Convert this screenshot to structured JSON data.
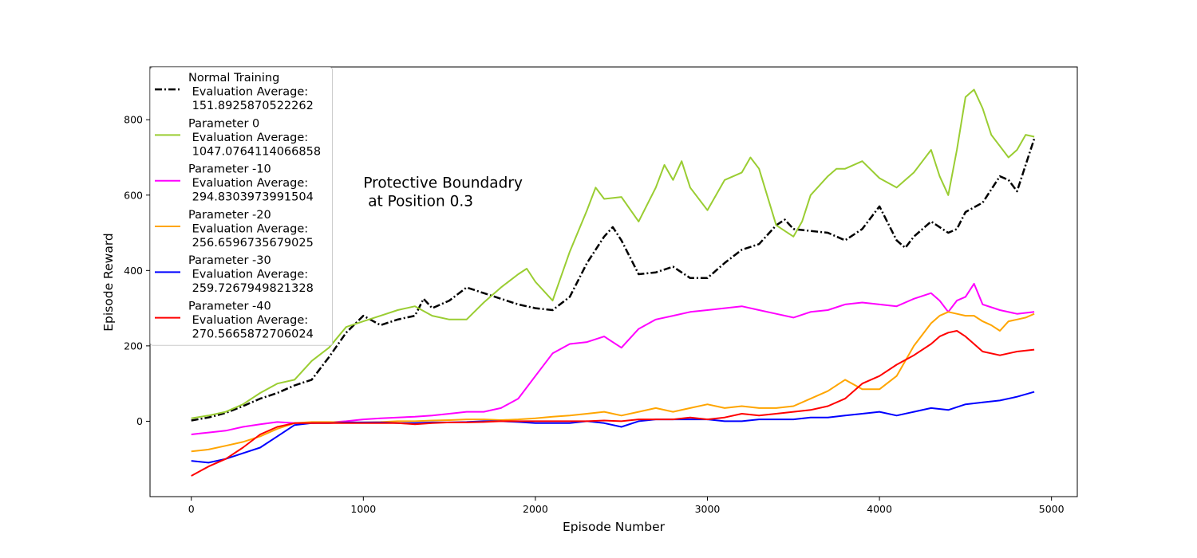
{
  "chart_data": {
    "type": "line",
    "title": "",
    "xlabel": "Episode Number",
    "ylabel": "Episode Reward",
    "xlim": [
      -240,
      5150
    ],
    "ylim": [
      -200,
      940
    ],
    "xticks": [
      0,
      1000,
      2000,
      3000,
      4000,
      5000
    ],
    "yticks": [
      0,
      200,
      400,
      600,
      800
    ],
    "grid": false,
    "legend_position": "upper-left",
    "annotation": {
      "lines": [
        "Protective Boundadry",
        " at Position 0.3"
      ],
      "x": 1000,
      "y": 620
    },
    "series": [
      {
        "name_lines": [
          "Normal Training",
          " Evaluation Average:",
          " 151.8925870522262"
        ],
        "color": "#000000",
        "style": "dashdot",
        "x": [
          0,
          100,
          200,
          300,
          400,
          500,
          600,
          700,
          800,
          900,
          1000,
          1100,
          1200,
          1300,
          1350,
          1400,
          1500,
          1600,
          1700,
          1800,
          1900,
          2000,
          2100,
          2200,
          2300,
          2400,
          2450,
          2500,
          2600,
          2700,
          2800,
          2900,
          3000,
          3100,
          3200,
          3300,
          3400,
          3450,
          3500,
          3600,
          3700,
          3800,
          3900,
          4000,
          4100,
          4150,
          4200,
          4300,
          4400,
          4450,
          4500,
          4600,
          4700,
          4750,
          4800,
          4850,
          4900
        ],
        "y": [
          2,
          10,
          22,
          40,
          60,
          75,
          95,
          110,
          170,
          235,
          280,
          255,
          270,
          280,
          325,
          300,
          320,
          355,
          340,
          325,
          310,
          300,
          295,
          330,
          420,
          490,
          515,
          480,
          390,
          395,
          410,
          380,
          380,
          420,
          455,
          470,
          520,
          535,
          510,
          505,
          500,
          480,
          510,
          570,
          480,
          460,
          490,
          530,
          500,
          510,
          555,
          580,
          650,
          640,
          610,
          680,
          750
        ]
      },
      {
        "name_lines": [
          "Parameter 0",
          " Evaluation Average:",
          " 1047.0764114066858"
        ],
        "color": "#9ACD32",
        "style": "solid",
        "x": [
          0,
          100,
          200,
          300,
          400,
          500,
          600,
          700,
          800,
          900,
          1000,
          1100,
          1200,
          1300,
          1400,
          1500,
          1600,
          1700,
          1800,
          1900,
          1950,
          2000,
          2100,
          2200,
          2300,
          2350,
          2400,
          2500,
          2600,
          2700,
          2750,
          2800,
          2850,
          2900,
          3000,
          3100,
          3200,
          3250,
          3300,
          3400,
          3500,
          3550,
          3600,
          3700,
          3750,
          3800,
          3900,
          4000,
          4100,
          4200,
          4250,
          4300,
          4350,
          4400,
          4450,
          4500,
          4550,
          4600,
          4650,
          4700,
          4750,
          4800,
          4850,
          4900
        ],
        "y": [
          8,
          15,
          25,
          45,
          75,
          100,
          110,
          160,
          195,
          250,
          265,
          280,
          295,
          305,
          280,
          270,
          270,
          315,
          355,
          390,
          405,
          370,
          320,
          450,
          560,
          620,
          590,
          595,
          530,
          620,
          680,
          640,
          690,
          620,
          560,
          640,
          660,
          700,
          670,
          520,
          490,
          530,
          600,
          650,
          670,
          670,
          690,
          645,
          620,
          660,
          690,
          720,
          650,
          600,
          720,
          860,
          880,
          830,
          760,
          730,
          700,
          720,
          760,
          755
        ]
      },
      {
        "name_lines": [
          "Parameter -10",
          " Evaluation Average:",
          " 294.8303973991504"
        ],
        "color": "#FF00FF",
        "style": "solid",
        "x": [
          0,
          100,
          200,
          300,
          400,
          500,
          600,
          700,
          800,
          900,
          1000,
          1100,
          1200,
          1300,
          1400,
          1500,
          1600,
          1700,
          1800,
          1900,
          2000,
          2100,
          2200,
          2300,
          2400,
          2500,
          2600,
          2700,
          2800,
          2900,
          3000,
          3100,
          3200,
          3300,
          3400,
          3500,
          3600,
          3700,
          3800,
          3900,
          4000,
          4100,
          4200,
          4300,
          4350,
          4400,
          4450,
          4500,
          4550,
          4600,
          4700,
          4800,
          4900
        ],
        "y": [
          -35,
          -30,
          -25,
          -15,
          -8,
          -2,
          -5,
          -5,
          -3,
          0,
          5,
          8,
          10,
          12,
          15,
          20,
          25,
          25,
          35,
          60,
          120,
          180,
          205,
          210,
          225,
          195,
          245,
          270,
          280,
          290,
          295,
          300,
          305,
          295,
          285,
          275,
          290,
          295,
          310,
          315,
          310,
          305,
          325,
          340,
          320,
          290,
          320,
          330,
          365,
          310,
          295,
          285,
          290
        ]
      },
      {
        "name_lines": [
          "Parameter -20",
          " Evaluation Average:",
          " 256.6596735679025"
        ],
        "color": "#FFA500",
        "style": "solid",
        "x": [
          0,
          100,
          200,
          300,
          400,
          500,
          600,
          700,
          800,
          900,
          1000,
          1100,
          1200,
          1300,
          1400,
          1500,
          1600,
          1700,
          1800,
          1900,
          2000,
          2100,
          2200,
          2300,
          2400,
          2500,
          2600,
          2700,
          2800,
          2900,
          3000,
          3100,
          3200,
          3300,
          3400,
          3500,
          3600,
          3700,
          3800,
          3900,
          4000,
          4100,
          4200,
          4300,
          4350,
          4400,
          4450,
          4500,
          4550,
          4600,
          4650,
          4700,
          4750,
          4800,
          4850,
          4900
        ],
        "y": [
          -80,
          -75,
          -65,
          -55,
          -40,
          -20,
          -5,
          -2,
          -2,
          -3,
          -3,
          -2,
          0,
          0,
          2,
          3,
          5,
          5,
          3,
          5,
          8,
          12,
          15,
          20,
          25,
          15,
          25,
          35,
          25,
          35,
          45,
          35,
          40,
          35,
          35,
          40,
          60,
          80,
          110,
          85,
          85,
          120,
          200,
          260,
          280,
          290,
          285,
          280,
          280,
          265,
          255,
          240,
          265,
          270,
          275,
          285
        ]
      },
      {
        "name_lines": [
          "Parameter -30",
          " Evaluation Average:",
          " 259.7267949821328"
        ],
        "color": "#0000FF",
        "style": "solid",
        "x": [
          0,
          100,
          200,
          300,
          400,
          500,
          600,
          700,
          800,
          900,
          1000,
          1100,
          1200,
          1300,
          1400,
          1500,
          1600,
          1700,
          1800,
          1900,
          2000,
          2100,
          2200,
          2300,
          2400,
          2500,
          2600,
          2700,
          2800,
          2900,
          3000,
          3100,
          3200,
          3300,
          3400,
          3500,
          3600,
          3700,
          3800,
          3900,
          4000,
          4100,
          4200,
          4300,
          4400,
          4500,
          4600,
          4700,
          4800,
          4900
        ],
        "y": [
          -105,
          -110,
          -100,
          -85,
          -70,
          -40,
          -10,
          -5,
          -5,
          -3,
          -3,
          -3,
          -5,
          -5,
          -3,
          -3,
          -2,
          0,
          0,
          -2,
          -5,
          -5,
          -5,
          0,
          -5,
          -15,
          0,
          5,
          5,
          5,
          5,
          0,
          0,
          5,
          5,
          5,
          10,
          10,
          15,
          20,
          25,
          15,
          25,
          35,
          30,
          45,
          50,
          55,
          65,
          78
        ]
      },
      {
        "name_lines": [
          "Parameter -40",
          " Evaluation Average:",
          " 270.5665872706024"
        ],
        "color": "#FF0000",
        "style": "solid",
        "x": [
          0,
          100,
          200,
          300,
          400,
          500,
          600,
          700,
          800,
          900,
          1000,
          1100,
          1200,
          1300,
          1400,
          1500,
          1600,
          1700,
          1800,
          1900,
          2000,
          2100,
          2200,
          2300,
          2400,
          2500,
          2600,
          2700,
          2800,
          2900,
          3000,
          3100,
          3200,
          3300,
          3400,
          3500,
          3600,
          3700,
          3800,
          3900,
          4000,
          4100,
          4200,
          4300,
          4350,
          4400,
          4450,
          4500,
          4550,
          4600,
          4700,
          4800,
          4900
        ],
        "y": [
          -145,
          -120,
          -100,
          -70,
          -35,
          -15,
          -5,
          -5,
          -5,
          -5,
          -5,
          -5,
          -5,
          -8,
          -5,
          -3,
          -3,
          -2,
          0,
          0,
          0,
          0,
          0,
          0,
          2,
          0,
          5,
          5,
          5,
          10,
          5,
          10,
          20,
          15,
          20,
          25,
          30,
          40,
          60,
          100,
          120,
          150,
          175,
          205,
          225,
          235,
          240,
          225,
          205,
          185,
          175,
          185,
          190
        ]
      }
    ]
  }
}
